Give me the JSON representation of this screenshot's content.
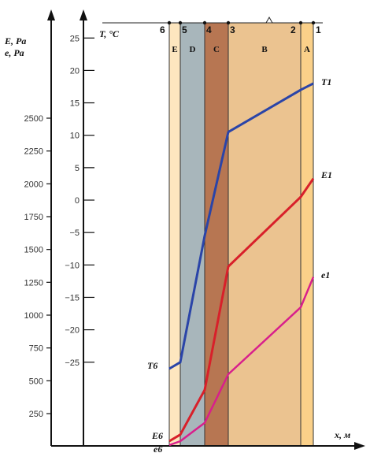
{
  "axes": {
    "pressure_title_line1": "E, Pa",
    "pressure_title_line2": "e, Pa",
    "temperature_title": "T, °C",
    "x_title": "x, м"
  },
  "pressure_ticks": [
    "2500",
    "2250",
    "2000",
    "1750",
    "1500",
    "1250",
    "1000",
    "750",
    "500",
    "250"
  ],
  "temperature_ticks": [
    "25",
    "20",
    "15",
    "10",
    "5",
    "0",
    "−5",
    "−10",
    "−15",
    "−20",
    "−25"
  ],
  "boundaries": [
    "6",
    "5",
    "4",
    "3",
    "2",
    "1"
  ],
  "layers": [
    {
      "letter": "E",
      "color": "#fde6bf"
    },
    {
      "letter": "D",
      "color": "#a8b6bb"
    },
    {
      "letter": "C",
      "color": "#b77652"
    },
    {
      "letter": "B",
      "color": "#ebc390"
    },
    {
      "letter": "A",
      "color": "#fad089"
    }
  ],
  "curves": {
    "T": {
      "start_label": "T6",
      "end_label": "T1",
      "color": "#2a44a8"
    },
    "E": {
      "start_label": "E6",
      "end_label": "E1",
      "color": "#d8202a"
    },
    "e": {
      "start_label": "e6",
      "end_label": "e1",
      "color": "#d81f8c"
    }
  },
  "chart_data": {
    "type": "line",
    "boundary_names": [
      "6",
      "5",
      "4",
      "3",
      "2",
      "1"
    ],
    "temperature_ylim": [
      -25,
      25
    ],
    "pressure_ylim": [
      250,
      2500
    ],
    "series": [
      {
        "name": "T",
        "values": [
          -26,
          -25,
          -5.5,
          10.5,
          17,
          18
        ]
      },
      {
        "name": "E",
        "values": [
          40,
          90,
          430,
          1370,
          1900,
          2040
        ]
      },
      {
        "name": "e",
        "values": [
          10,
          40,
          180,
          550,
          1060,
          1290
        ]
      }
    ]
  }
}
